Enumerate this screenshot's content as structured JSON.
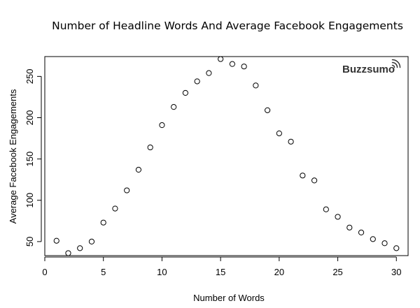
{
  "chart_data": {
    "type": "scatter",
    "title": "Number of Headline Words And Average Facebook Engagements",
    "xlabel": "Number of Words",
    "ylabel": "Average Facebook Engagements",
    "brand": "Buzzsumo",
    "brand_logo": "signal-waves-icon",
    "xlim": [
      0,
      31
    ],
    "ylim": [
      33,
      274
    ],
    "x_ticks": [
      0,
      5,
      10,
      15,
      20,
      25,
      30
    ],
    "y_ticks": [
      50,
      100,
      150,
      200,
      250
    ],
    "grid": false,
    "legend": "none",
    "series": [
      {
        "x": [
          1,
          2,
          3,
          4,
          5,
          6,
          7,
          8,
          9,
          10,
          11,
          12,
          13,
          14,
          15,
          16,
          17,
          18,
          19,
          20,
          21,
          22,
          23,
          24,
          25,
          26,
          27,
          28,
          29,
          30
        ],
        "y": [
          51,
          36,
          42,
          50,
          73,
          90,
          112,
          137,
          164,
          191,
          213,
          230,
          244,
          254,
          271,
          265,
          262,
          239,
          209,
          181,
          171,
          130,
          124,
          89,
          80,
          67,
          61,
          53,
          48,
          42
        ]
      }
    ]
  }
}
